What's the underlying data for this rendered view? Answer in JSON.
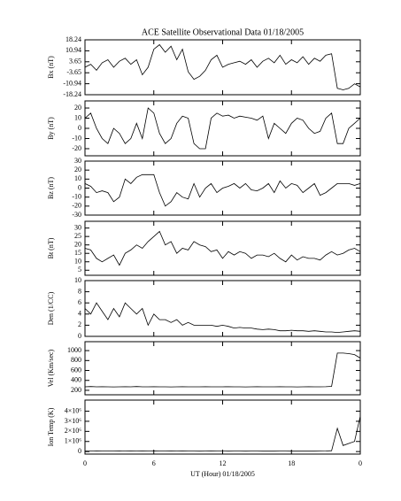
{
  "chart_data": [
    {
      "type": "line",
      "title": "ACE Satellite Observational Data   01/18/2005",
      "ylabel": "Bx (nT)",
      "ylim": [
        -18.24,
        18.24
      ],
      "yticks": [
        18.24,
        10.94,
        3.65,
        -3.65,
        -10.94,
        -18.24
      ],
      "x": [
        0,
        0.5,
        1,
        1.5,
        2,
        2.5,
        3,
        3.5,
        4,
        4.5,
        5,
        5.5,
        6,
        6.5,
        7,
        7.5,
        8,
        8.5,
        9,
        9.5,
        10,
        10.5,
        11,
        11.5,
        12,
        12.5,
        13,
        13.5,
        14,
        14.5,
        15,
        15.5,
        16,
        16.5,
        17,
        17.5,
        18,
        18.5,
        19,
        19.5,
        20,
        20.5,
        21,
        21.5,
        22,
        22.5,
        23,
        23.5,
        24
      ],
      "values": [
        0,
        2,
        -2,
        3,
        5,
        0,
        4,
        6,
        2,
        5,
        -5,
        0,
        12,
        15,
        10,
        14,
        5,
        12,
        -3,
        -8,
        -6,
        -2,
        5,
        8,
        0,
        2,
        3,
        4,
        2,
        5,
        0,
        4,
        6,
        3,
        8,
        2,
        5,
        3,
        7,
        2,
        6,
        4,
        8,
        9,
        -14,
        -15,
        -14,
        -11,
        -13
      ]
    },
    {
      "type": "line",
      "ylabel": "By (nT)",
      "ylim": [
        -27,
        27
      ],
      "yticks": [
        20,
        10,
        0,
        -10,
        -20
      ],
      "x": [
        0,
        0.5,
        1,
        1.5,
        2,
        2.5,
        3,
        3.5,
        4,
        4.5,
        5,
        5.5,
        6,
        6.5,
        7,
        7.5,
        8,
        8.5,
        9,
        9.5,
        10,
        10.5,
        11,
        11.5,
        12,
        12.5,
        13,
        13.5,
        14,
        14.5,
        15,
        15.5,
        16,
        16.5,
        17,
        17.5,
        18,
        18.5,
        19,
        19.5,
        20,
        20.5,
        21,
        21.5,
        22,
        22.5,
        23,
        23.5,
        24
      ],
      "values": [
        10,
        15,
        0,
        -10,
        -15,
        0,
        -5,
        -15,
        -10,
        5,
        -10,
        20,
        15,
        -5,
        -15,
        -10,
        5,
        12,
        10,
        -15,
        -20,
        -20,
        10,
        15,
        12,
        13,
        10,
        12,
        11,
        10,
        8,
        12,
        -10,
        5,
        0,
        -5,
        5,
        10,
        8,
        0,
        -5,
        -3,
        10,
        15,
        -15,
        -15,
        0,
        5,
        10
      ]
    },
    {
      "type": "line",
      "ylabel": "Bz (nT)",
      "ylim": [
        -30,
        30
      ],
      "yticks": [
        30,
        20,
        10,
        0,
        -10,
        -20,
        -30
      ],
      "x": [
        0,
        0.5,
        1,
        1.5,
        2,
        2.5,
        3,
        3.5,
        4,
        4.5,
        5,
        5.5,
        6,
        6.5,
        7,
        7.5,
        8,
        8.5,
        9,
        9.5,
        10,
        10.5,
        11,
        11.5,
        12,
        12.5,
        13,
        13.5,
        14,
        14.5,
        15,
        15.5,
        16,
        16.5,
        17,
        17.5,
        18,
        18.5,
        19,
        19.5,
        20,
        20.5,
        21,
        21.5,
        22,
        22.5,
        23,
        23.5,
        24
      ],
      "values": [
        5,
        2,
        -5,
        -3,
        -5,
        -15,
        -10,
        10,
        5,
        12,
        15,
        15,
        15,
        -5,
        -20,
        -15,
        -5,
        -10,
        -12,
        5,
        -10,
        0,
        5,
        -5,
        0,
        2,
        5,
        0,
        5,
        -2,
        -3,
        0,
        5,
        -5,
        8,
        0,
        5,
        3,
        -5,
        0,
        5,
        -8,
        -5,
        0,
        5,
        5,
        5,
        3,
        5
      ]
    },
    {
      "type": "line",
      "ylabel": "Bt (nT)",
      "ylim": [
        2,
        34
      ],
      "yticks": [
        30,
        25,
        20,
        15,
        10,
        5
      ],
      "x": [
        0,
        0.5,
        1,
        1.5,
        2,
        2.5,
        3,
        3.5,
        4,
        4.5,
        5,
        5.5,
        6,
        6.5,
        7,
        7.5,
        8,
        8.5,
        9,
        9.5,
        10,
        10.5,
        11,
        11.5,
        12,
        12.5,
        13,
        13.5,
        14,
        14.5,
        15,
        15.5,
        16,
        16.5,
        17,
        17.5,
        18,
        18.5,
        19,
        19.5,
        20,
        20.5,
        21,
        21.5,
        22,
        22.5,
        23,
        23.5,
        24
      ],
      "values": [
        18,
        17,
        12,
        10,
        12,
        14,
        8,
        15,
        17,
        20,
        18,
        22,
        25,
        28,
        20,
        22,
        15,
        18,
        17,
        22,
        20,
        19,
        16,
        17,
        12,
        16,
        14,
        16,
        15,
        12,
        14,
        14,
        13,
        15,
        12,
        10,
        14,
        11,
        13,
        12,
        12,
        11,
        14,
        16,
        14,
        15,
        17,
        18,
        16
      ]
    },
    {
      "type": "line",
      "ylabel": "Den (1/CC)",
      "ylim": [
        0,
        10
      ],
      "yticks": [
        10,
        8,
        6,
        4,
        2,
        0
      ],
      "x": [
        0,
        0.5,
        1,
        1.5,
        2,
        2.5,
        3,
        3.5,
        4,
        4.5,
        5,
        5.5,
        6,
        6.5,
        7,
        7.5,
        8,
        8.5,
        9,
        9.5,
        10,
        10.5,
        11,
        11.5,
        12,
        12.5,
        13,
        13.5,
        14,
        14.5,
        15,
        15.5,
        16,
        16.5,
        17,
        17.5,
        18,
        18.5,
        19,
        19.5,
        20,
        20.5,
        21,
        21.5,
        22,
        22.5,
        23,
        23.5,
        24
      ],
      "values": [
        5,
        4,
        6,
        4.5,
        3,
        5,
        3.5,
        6,
        5,
        4,
        5,
        2,
        4,
        3,
        3,
        2.5,
        3,
        2,
        2.5,
        2,
        2,
        2,
        2,
        1.8,
        2,
        1.8,
        1.5,
        1.6,
        1.5,
        1.5,
        1.3,
        1.2,
        1.3,
        1.2,
        1,
        1,
        1.1,
        1,
        1,
        0.9,
        1,
        0.9,
        0.8,
        0.8,
        0.7,
        0.8,
        0.9,
        1,
        0.9
      ]
    },
    {
      "type": "line",
      "ylabel": "Vel (Km/sec)",
      "ylim": [
        110,
        1180
      ],
      "yticks": [
        1000,
        800,
        600,
        400,
        200
      ],
      "x": [
        0,
        0.5,
        1,
        1.5,
        2,
        2.5,
        3,
        3.5,
        4,
        4.5,
        5,
        5.5,
        6,
        6.5,
        7,
        7.5,
        8,
        8.5,
        9,
        9.5,
        10,
        10.5,
        11,
        11.5,
        12,
        12.5,
        13,
        13.5,
        14,
        14.5,
        15,
        15.5,
        16,
        16.5,
        17,
        17.5,
        18,
        18.5,
        19,
        19.5,
        20,
        20.5,
        21,
        21.5,
        22,
        22.5,
        23,
        23.5,
        24
      ],
      "values": [
        270,
        275,
        270,
        272,
        270,
        268,
        270,
        272,
        270,
        275,
        270,
        270,
        272,
        270,
        270,
        268,
        270,
        272,
        270,
        270,
        270,
        272,
        270,
        270,
        270,
        272,
        270,
        270,
        268,
        270,
        272,
        270,
        270,
        270,
        272,
        270,
        270,
        268,
        270,
        272,
        270,
        270,
        272,
        280,
        950,
        950,
        940,
        920,
        850
      ]
    },
    {
      "type": "line",
      "ylabel": "Ion Temp (K)",
      "xlabel": "UT (Hour)  01/18/2005",
      "ylim": [
        -250000,
        5100000
      ],
      "yticks": [
        {
          "value": 4000000,
          "label": "4×10⁶"
        },
        {
          "value": 3000000,
          "label": "3×10⁶"
        },
        {
          "value": 2000000,
          "label": "2×10⁶"
        },
        {
          "value": 1000000,
          "label": "1×10⁶"
        },
        0
      ],
      "xlim": [
        0,
        24
      ],
      "xticks": [
        0,
        6,
        12,
        18,
        {
          "value": 24,
          "label": "0"
        }
      ],
      "x": [
        0,
        0.5,
        1,
        1.5,
        2,
        2.5,
        3,
        3.5,
        4,
        4.5,
        5,
        5.5,
        6,
        6.5,
        7,
        7.5,
        8,
        8.5,
        9,
        9.5,
        10,
        10.5,
        11,
        11.5,
        12,
        12.5,
        13,
        13.5,
        14,
        14.5,
        15,
        15.5,
        16,
        16.5,
        17,
        17.5,
        18,
        18.5,
        19,
        19.5,
        20,
        20.5,
        21,
        21.5,
        22,
        22.5,
        23,
        23.5,
        24
      ],
      "values": [
        60000,
        50000,
        70000,
        60000,
        50000,
        60000,
        70000,
        50000,
        60000,
        50000,
        60000,
        50000,
        70000,
        60000,
        50000,
        60000,
        50000,
        60000,
        50000,
        50000,
        40000,
        50000,
        60000,
        50000,
        50000,
        40000,
        50000,
        50000,
        40000,
        50000,
        50000,
        40000,
        50000,
        40000,
        50000,
        50000,
        40000,
        50000,
        40000,
        50000,
        40000,
        50000,
        60000,
        80000,
        2300000,
        600000,
        800000,
        1000000,
        3500000
      ]
    }
  ]
}
